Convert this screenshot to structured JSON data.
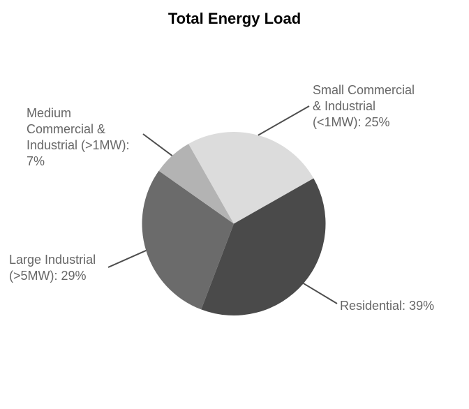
{
  "chart_data": {
    "type": "pie",
    "title": "Total Energy Load",
    "start_angle_deg": 119.6,
    "direction": "clockwise",
    "background_color": "#ffffff",
    "title_color": "#000000",
    "label_color": "#666666",
    "leader_line_color": "#4d4d4d",
    "slices": [
      {
        "name": "Small Commercial & Industrial (<1MW)",
        "value_pct": 25,
        "color": "#dcdcdc",
        "label_text": "Small Commercial\n& Industrial\n(<1MW): 25%"
      },
      {
        "name": "Residential",
        "value_pct": 39,
        "color": "#4a4a4a",
        "label_text": "Residential: 39%"
      },
      {
        "name": "Large Industrial (>5MW)",
        "value_pct": 29,
        "color": "#6b6b6b",
        "label_text": "Large Industrial\n(>5MW): 29%"
      },
      {
        "name": "Medium Commercial & Industrial (>1MW)",
        "value_pct": 7,
        "color": "#b3b3b3",
        "label_text": "Medium\nCommercial &\nIndustrial (>1MW):\n7%"
      }
    ]
  }
}
